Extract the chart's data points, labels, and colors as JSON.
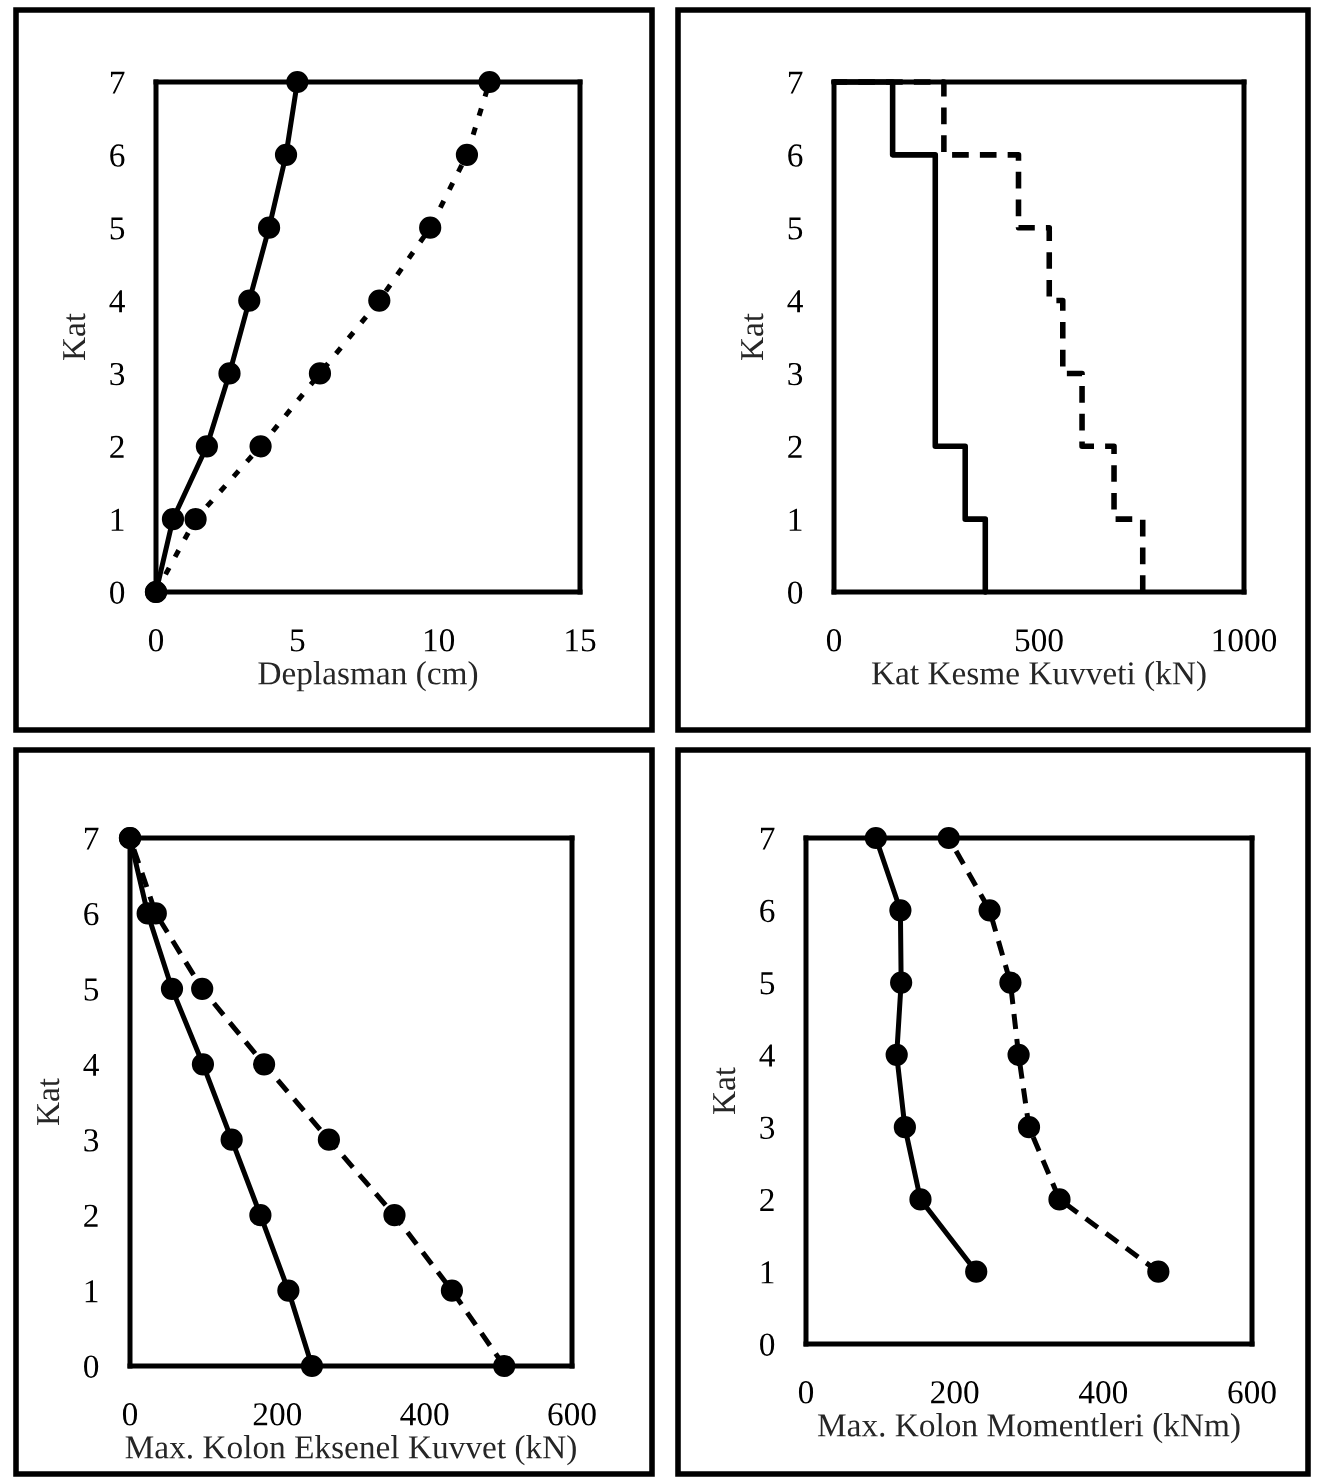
{
  "chart_data": [
    {
      "type": "line",
      "orientation": "horizontal",
      "ylabel": "Kat",
      "xlabel": "Deplasman (cm)",
      "x": [
        0,
        1,
        2,
        3,
        4,
        5,
        6,
        7
      ],
      "xlim": [
        0,
        15
      ],
      "xticks": [
        0,
        5,
        10,
        15
      ],
      "ylim": [
        0,
        7
      ],
      "yticks": [
        0,
        1,
        2,
        3,
        4,
        5,
        6,
        7
      ],
      "marker": "circle",
      "grid": false,
      "series": [
        {
          "color": "#000000",
          "line_style": "solid",
          "values": [
            0,
            0.6,
            1.8,
            2.6,
            3.3,
            4.0,
            4.6,
            5.0
          ]
        },
        {
          "color": "#000000",
          "line_style": "dotted",
          "values": [
            0,
            1.4,
            3.7,
            5.8,
            7.9,
            9.7,
            11.0,
            11.8
          ]
        }
      ]
    },
    {
      "type": "step",
      "orientation": "horizontal",
      "ylabel": "Kat",
      "xlabel": "Kat Kesme Kuvveti (kN)",
      "x": [
        0,
        1,
        2,
        3,
        4,
        5,
        6,
        7
      ],
      "xlim": [
        0,
        1000
      ],
      "xticks": [
        0,
        500,
        1000
      ],
      "ylim": [
        0,
        7
      ],
      "yticks": [
        0,
        1,
        2,
        3,
        4,
        5,
        6,
        7
      ],
      "marker": "none",
      "grid": false,
      "series": [
        {
          "color": "#000000",
          "line_style": "solid",
          "values": [
            369,
            320,
            247,
            247,
            247,
            247,
            143,
            0
          ]
        },
        {
          "color": "#000000",
          "line_style": "dashed",
          "values": [
            753,
            683,
            605,
            558,
            525,
            450,
            268,
            0
          ]
        }
      ]
    },
    {
      "type": "line",
      "orientation": "horizontal",
      "ylabel": "Kat",
      "xlabel": "Max. Kolon Eksenel Kuvvet (kN)",
      "x": [
        0,
        1,
        2,
        3,
        4,
        5,
        6,
        7
      ],
      "xlim": [
        0,
        600
      ],
      "xticks": [
        0,
        200,
        400,
        600
      ],
      "ylim": [
        0,
        7
      ],
      "yticks": [
        0,
        1,
        2,
        3,
        4,
        5,
        6,
        7
      ],
      "marker": "circle",
      "grid": false,
      "series": [
        {
          "color": "#000000",
          "line_style": "solid",
          "values": [
            247,
            215,
            177,
            138,
            99,
            57,
            24,
            0
          ]
        },
        {
          "color": "#000000",
          "line_style": "dashed",
          "values": [
            508,
            437,
            359,
            270,
            182,
            98,
            35,
            0
          ]
        }
      ]
    },
    {
      "type": "line",
      "orientation": "horizontal",
      "ylabel": "Kat",
      "xlabel": "Max. Kolon Momentleri (kNm)",
      "x": [
        1,
        2,
        3,
        4,
        5,
        6,
        7
      ],
      "xlim": [
        0,
        600
      ],
      "xticks": [
        0,
        200,
        400,
        600
      ],
      "ylim": [
        0,
        7
      ],
      "yticks": [
        0,
        1,
        2,
        3,
        4,
        5,
        6,
        7
      ],
      "marker": "circle",
      "grid": false,
      "series": [
        {
          "color": "#000000",
          "line_style": "solid",
          "values": [
            229,
            154,
            133,
            122,
            128,
            127,
            94
          ]
        },
        {
          "color": "#000000",
          "line_style": "dashed",
          "values": [
            474,
            341,
            300,
            286,
            275,
            247,
            192
          ]
        }
      ]
    }
  ]
}
